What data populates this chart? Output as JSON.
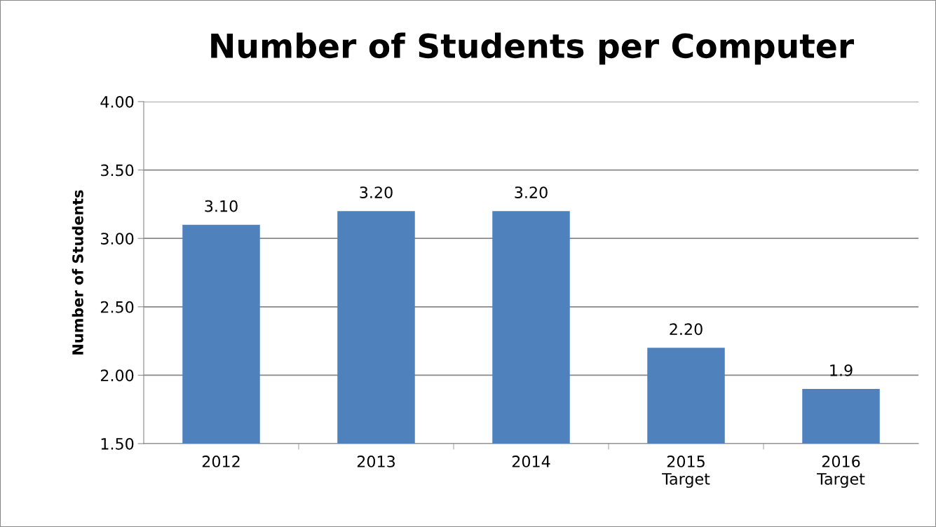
{
  "chart_data": {
    "type": "bar",
    "title": "Number of Students per Computer",
    "ylabel": "Number of Students",
    "categories": [
      "2012",
      "2013",
      "2014",
      "2015\nTarget",
      "2016\nTarget"
    ],
    "values": [
      3.1,
      3.2,
      3.2,
      2.2,
      1.9
    ],
    "color": "#4f81bd",
    "value_labels": [
      "3.10",
      "3.20",
      "3.20",
      "2.20",
      "1.9"
    ],
    "ylim": [
      1.5,
      4.0
    ],
    "yticks": [
      {
        "value": 1.5,
        "label": "1.50"
      },
      {
        "value": 2.0,
        "label": "2.00"
      },
      {
        "value": 2.5,
        "label": "2.50"
      },
      {
        "value": 3.0,
        "label": "3.00"
      },
      {
        "value": 3.5,
        "label": "3.50"
      },
      {
        "value": 4.0,
        "label": "4.00"
      }
    ],
    "grid": "y",
    "legend": false
  }
}
